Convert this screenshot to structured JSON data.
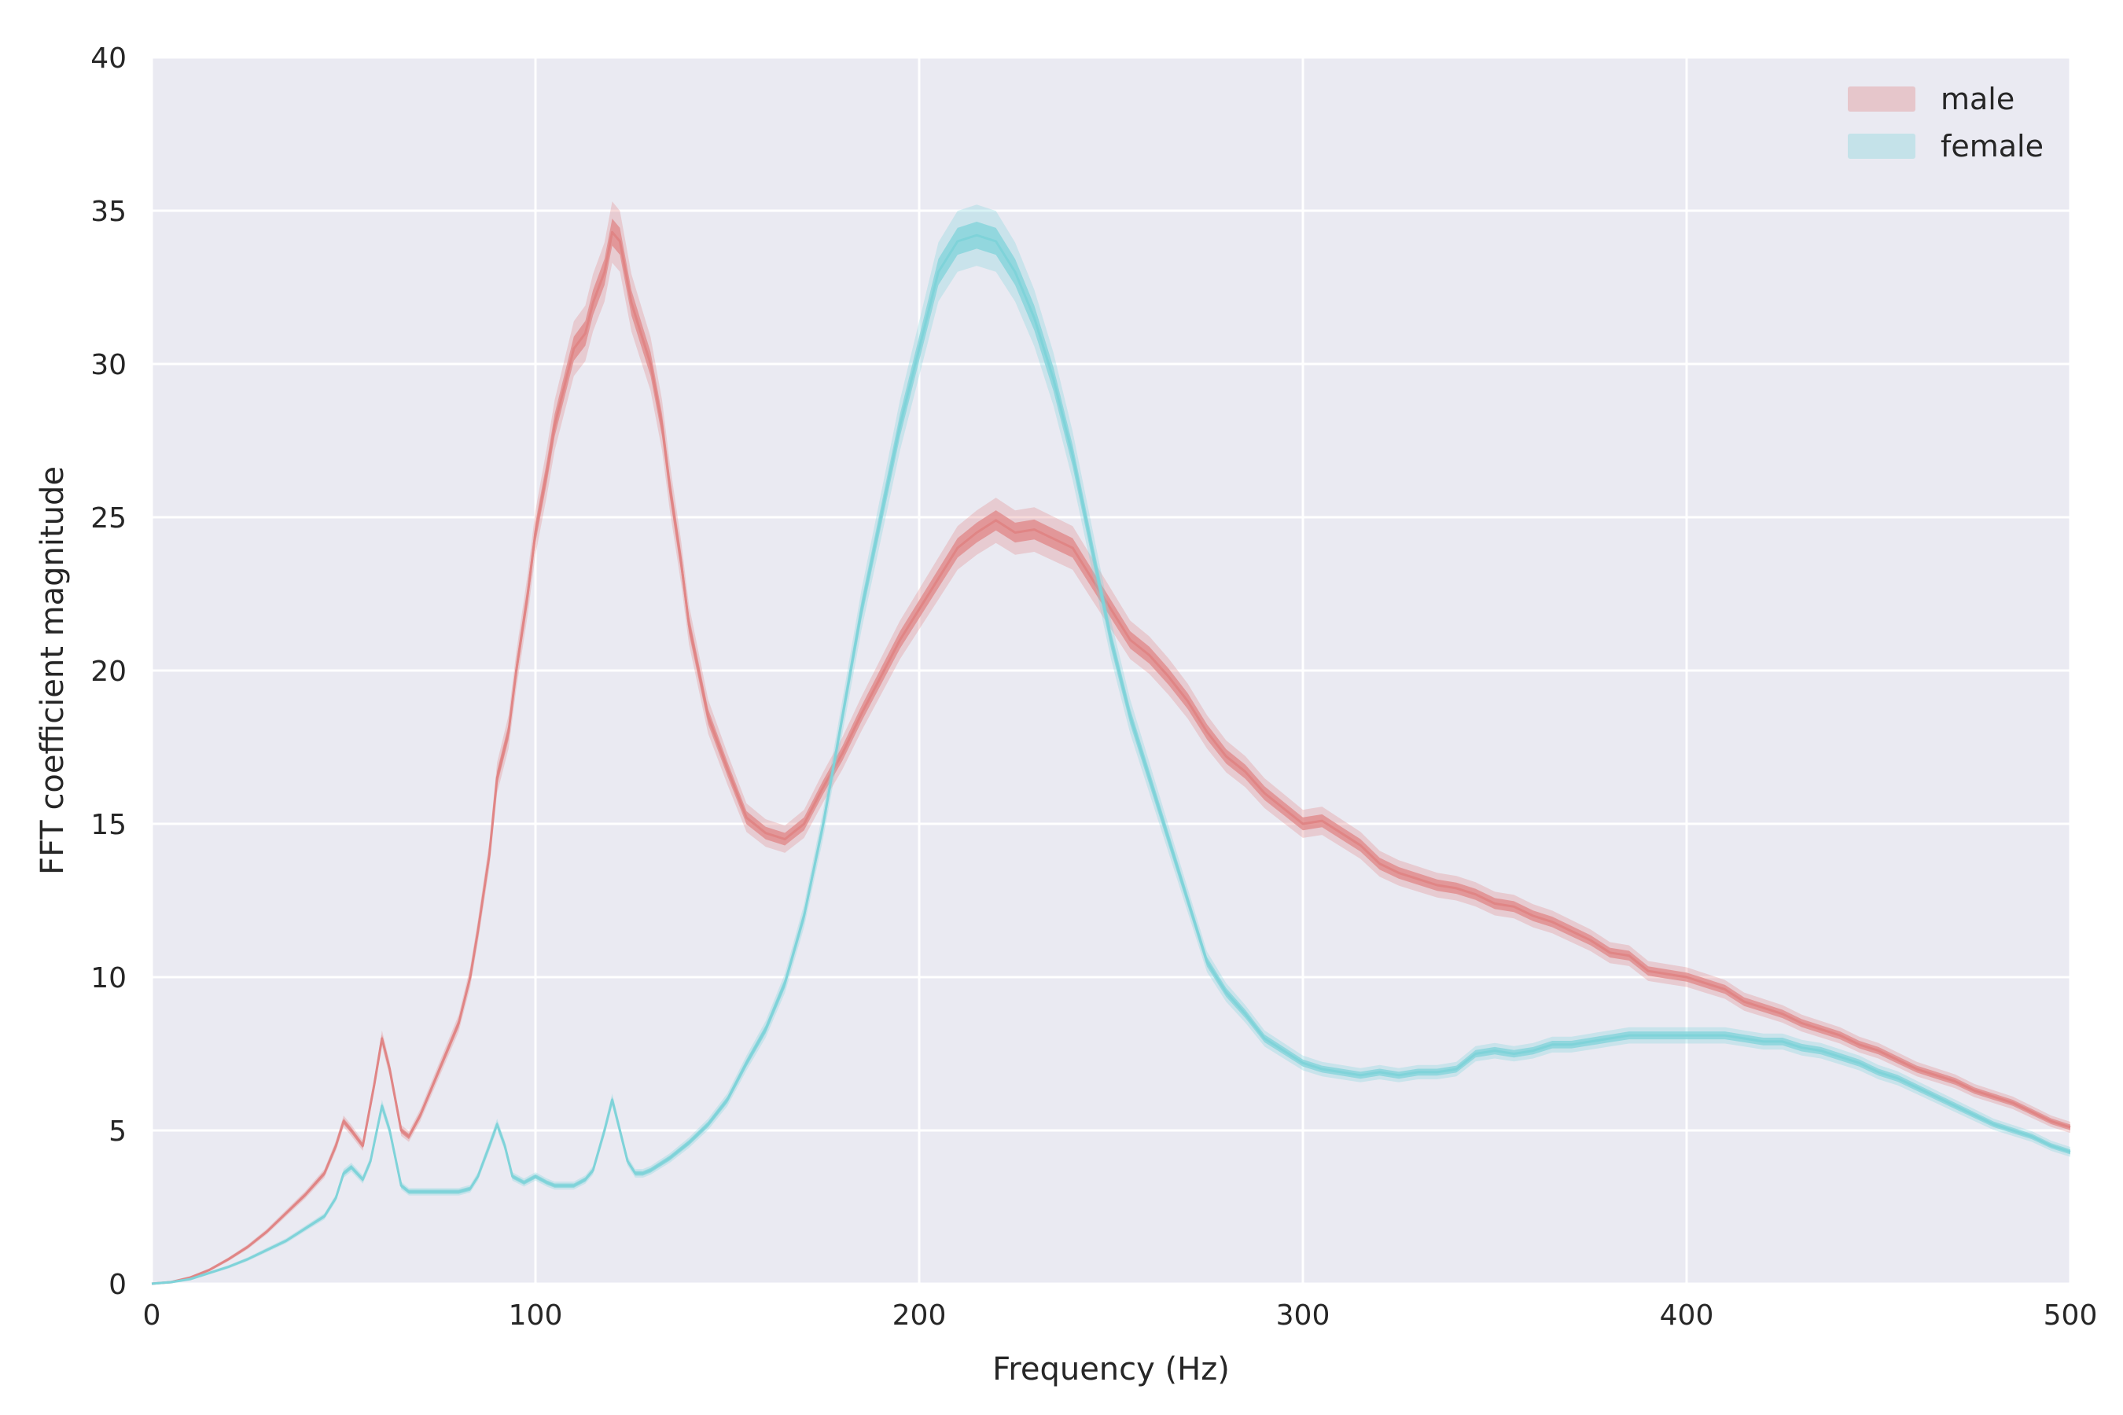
{
  "chart_data": {
    "type": "line",
    "title": "",
    "xlabel": "Frequency (Hz)",
    "ylabel": "FFT coefficient magnitude",
    "xlim": [
      0,
      500
    ],
    "ylim": [
      0,
      40
    ],
    "xticks": [
      0,
      100,
      200,
      300,
      400,
      500
    ],
    "yticks": [
      0,
      5,
      10,
      15,
      20,
      25,
      30,
      35,
      40
    ],
    "grid": true,
    "legend_position": "top-right",
    "colors": {
      "background": "#eaeaf2",
      "grid": "#ffffff"
    },
    "series": [
      {
        "name": "male",
        "color": "#e08585",
        "x": [
          0,
          5,
          10,
          15,
          20,
          25,
          30,
          35,
          40,
          45,
          48,
          50,
          52,
          55,
          58,
          60,
          62,
          65,
          67,
          70,
          75,
          80,
          83,
          85,
          88,
          90,
          93,
          95,
          98,
          100,
          103,
          105,
          108,
          110,
          113,
          115,
          118,
          120,
          122,
          125,
          128,
          130,
          133,
          135,
          138,
          140,
          145,
          150,
          155,
          160,
          165,
          170,
          175,
          180,
          185,
          190,
          195,
          200,
          205,
          210,
          215,
          220,
          225,
          230,
          235,
          240,
          245,
          250,
          255,
          260,
          265,
          270,
          275,
          280,
          285,
          290,
          295,
          300,
          305,
          310,
          315,
          320,
          325,
          330,
          335,
          340,
          345,
          350,
          355,
          360,
          365,
          370,
          375,
          380,
          385,
          390,
          395,
          400,
          405,
          410,
          415,
          420,
          425,
          430,
          435,
          440,
          445,
          450,
          455,
          460,
          465,
          470,
          475,
          480,
          485,
          490,
          495,
          500
        ],
        "y": [
          0,
          0.05,
          0.2,
          0.45,
          0.8,
          1.2,
          1.7,
          2.3,
          2.9,
          3.6,
          4.5,
          5.3,
          5.0,
          4.5,
          6.5,
          8.0,
          7.0,
          5.0,
          4.8,
          5.5,
          7.0,
          8.5,
          10.0,
          11.5,
          14.0,
          16.5,
          18.0,
          20.0,
          22.5,
          24.5,
          26.5,
          28.0,
          29.5,
          30.5,
          31.0,
          32.0,
          33.0,
          34.3,
          34.0,
          32.0,
          30.8,
          30.0,
          28.0,
          26.0,
          23.5,
          21.5,
          18.5,
          16.8,
          15.2,
          14.7,
          14.5,
          15.0,
          16.2,
          17.3,
          18.6,
          19.8,
          21.0,
          22.0,
          23.0,
          24.0,
          24.5,
          24.9,
          24.5,
          24.6,
          24.3,
          24.0,
          23.0,
          22.0,
          21.0,
          20.5,
          19.8,
          19.0,
          18.0,
          17.2,
          16.7,
          16.0,
          15.5,
          15.0,
          15.1,
          14.7,
          14.3,
          13.7,
          13.4,
          13.2,
          13.0,
          12.9,
          12.7,
          12.4,
          12.3,
          12.0,
          11.8,
          11.5,
          11.2,
          10.8,
          10.7,
          10.2,
          10.1,
          10.0,
          9.8,
          9.6,
          9.2,
          9.0,
          8.8,
          8.5,
          8.3,
          8.1,
          7.8,
          7.6,
          7.3,
          7.0,
          6.8,
          6.6,
          6.3,
          6.1,
          5.9,
          5.6,
          5.3,
          5.1
        ]
      },
      {
        "name": "female",
        "color": "#7fd3d9",
        "x": [
          0,
          5,
          10,
          15,
          20,
          25,
          30,
          35,
          40,
          45,
          48,
          50,
          52,
          55,
          57,
          60,
          62,
          65,
          67,
          70,
          75,
          80,
          83,
          85,
          88,
          90,
          92,
          94,
          97,
          100,
          103,
          105,
          108,
          110,
          113,
          115,
          118,
          120,
          122,
          124,
          126,
          128,
          130,
          135,
          140,
          145,
          150,
          155,
          160,
          165,
          170,
          175,
          180,
          185,
          190,
          195,
          200,
          205,
          210,
          215,
          220,
          225,
          230,
          235,
          240,
          245,
          250,
          255,
          260,
          265,
          270,
          275,
          280,
          285,
          290,
          295,
          300,
          305,
          310,
          315,
          320,
          325,
          330,
          335,
          340,
          345,
          350,
          355,
          360,
          365,
          370,
          375,
          380,
          385,
          390,
          395,
          400,
          405,
          410,
          415,
          420,
          425,
          430,
          435,
          440,
          445,
          450,
          455,
          460,
          465,
          470,
          475,
          480,
          485,
          490,
          495,
          500
        ],
        "y": [
          0,
          0.05,
          0.15,
          0.35,
          0.55,
          0.8,
          1.1,
          1.4,
          1.8,
          2.2,
          2.8,
          3.6,
          3.8,
          3.4,
          4.0,
          5.8,
          5.0,
          3.2,
          3.0,
          3.0,
          3.0,
          3.0,
          3.1,
          3.5,
          4.5,
          5.2,
          4.5,
          3.5,
          3.3,
          3.5,
          3.3,
          3.2,
          3.2,
          3.2,
          3.4,
          3.7,
          5.0,
          6.0,
          5.0,
          4.0,
          3.6,
          3.6,
          3.7,
          4.1,
          4.6,
          5.2,
          6.0,
          7.2,
          8.3,
          9.8,
          12.0,
          15.0,
          18.5,
          22.0,
          25.0,
          28.0,
          30.5,
          33.0,
          34.0,
          34.2,
          34.0,
          33.0,
          31.5,
          29.5,
          27.0,
          24.0,
          21.0,
          18.5,
          16.5,
          14.5,
          12.5,
          10.5,
          9.5,
          8.8,
          8.0,
          7.6,
          7.2,
          7.0,
          6.9,
          6.8,
          6.9,
          6.8,
          6.9,
          6.9,
          7.0,
          7.5,
          7.6,
          7.5,
          7.6,
          7.8,
          7.8,
          7.9,
          8.0,
          8.1,
          8.1,
          8.1,
          8.1,
          8.1,
          8.1,
          8.0,
          7.9,
          7.9,
          7.7,
          7.6,
          7.4,
          7.2,
          6.9,
          6.7,
          6.4,
          6.1,
          5.8,
          5.5,
          5.2,
          5.0,
          4.8,
          4.5,
          4.3
        ]
      }
    ]
  }
}
